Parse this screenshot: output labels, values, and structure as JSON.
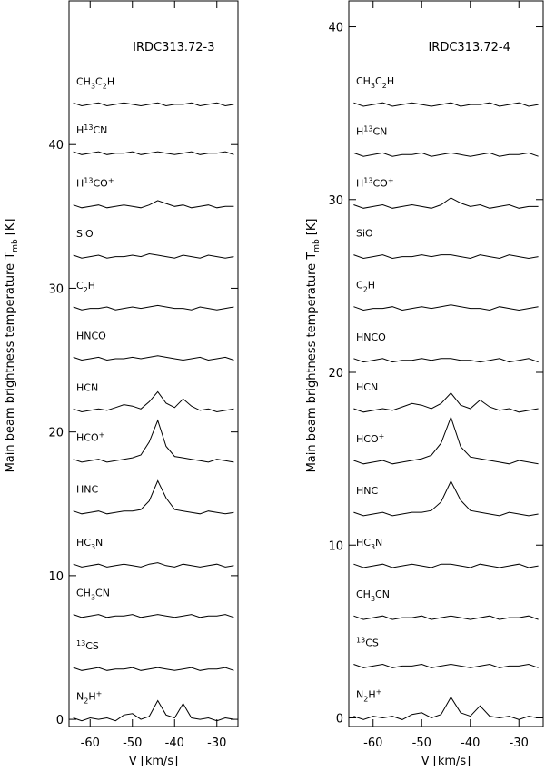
{
  "chart_data": [
    {
      "type": "line",
      "title": "IRDC313.72-3",
      "xlabel": "V [km/s]",
      "ylabel": [
        {
          "text": "Main beam brightness temperature T"
        },
        {
          "text": "mb",
          "script": "sub"
        },
        {
          "text": "[K]"
        }
      ],
      "x": [
        -64,
        -62,
        -60,
        -58,
        -56,
        -54,
        -52,
        -50,
        -48,
        -46,
        -44,
        -42,
        -40,
        -38,
        -36,
        -34,
        -32,
        -30,
        -28,
        -26
      ],
      "xlim": [
        -65,
        -25
      ],
      "xticks": [
        -60,
        -50,
        -40,
        -30
      ],
      "ylim": [
        -0.5,
        50
      ],
      "yticks": [
        0,
        10,
        20,
        30,
        40
      ],
      "series": [
        {
          "name": [
            {
              "text": "CH"
            },
            {
              "text": "3",
              "script": "sub"
            },
            {
              "text": "C"
            },
            {
              "text": "2",
              "script": "sub"
            },
            {
              "text": "H"
            }
          ],
          "color": "#000000",
          "values": [
            42.9,
            42.7,
            42.8,
            42.9,
            42.7,
            42.8,
            42.9,
            42.8,
            42.7,
            42.8,
            42.9,
            42.7,
            42.8,
            42.8,
            42.9,
            42.7,
            42.8,
            42.9,
            42.7,
            42.8
          ]
        },
        {
          "name": [
            {
              "text": "H"
            },
            {
              "text": "13",
              "script": "super"
            },
            {
              "text": "CN"
            }
          ],
          "color": "#000000",
          "values": [
            39.5,
            39.3,
            39.4,
            39.5,
            39.3,
            39.4,
            39.4,
            39.5,
            39.3,
            39.4,
            39.5,
            39.4,
            39.3,
            39.4,
            39.5,
            39.3,
            39.4,
            39.4,
            39.5,
            39.3
          ]
        },
        {
          "name": [
            {
              "text": "H"
            },
            {
              "text": "13",
              "script": "super"
            },
            {
              "text": "CO"
            },
            {
              "text": "+",
              "script": "super"
            }
          ],
          "color": "#000000",
          "values": [
            35.8,
            35.6,
            35.7,
            35.8,
            35.6,
            35.7,
            35.8,
            35.7,
            35.6,
            35.8,
            36.1,
            35.9,
            35.7,
            35.8,
            35.6,
            35.7,
            35.8,
            35.6,
            35.7,
            35.7
          ]
        },
        {
          "name": [
            {
              "text": "SiO"
            }
          ],
          "color": "#000000",
          "values": [
            32.3,
            32.1,
            32.2,
            32.3,
            32.1,
            32.2,
            32.2,
            32.3,
            32.2,
            32.4,
            32.3,
            32.2,
            32.1,
            32.3,
            32.2,
            32.1,
            32.3,
            32.2,
            32.1,
            32.2
          ]
        },
        {
          "name": [
            {
              "text": "C"
            },
            {
              "text": "2",
              "script": "sub"
            },
            {
              "text": "H"
            }
          ],
          "color": "#000000",
          "values": [
            28.7,
            28.5,
            28.6,
            28.6,
            28.7,
            28.5,
            28.6,
            28.7,
            28.6,
            28.7,
            28.8,
            28.7,
            28.6,
            28.6,
            28.5,
            28.7,
            28.6,
            28.5,
            28.6,
            28.7
          ]
        },
        {
          "name": [
            {
              "text": "HNCO"
            }
          ],
          "color": "#000000",
          "values": [
            25.2,
            25.0,
            25.1,
            25.2,
            25.0,
            25.1,
            25.1,
            25.2,
            25.1,
            25.2,
            25.3,
            25.2,
            25.1,
            25.0,
            25.1,
            25.2,
            25.0,
            25.1,
            25.2,
            25.0
          ]
        },
        {
          "name": [
            {
              "text": "HCN"
            }
          ],
          "color": "#000000",
          "values": [
            21.6,
            21.4,
            21.5,
            21.6,
            21.5,
            21.7,
            21.9,
            21.8,
            21.6,
            22.1,
            22.8,
            22.0,
            21.7,
            22.3,
            21.8,
            21.5,
            21.6,
            21.4,
            21.5,
            21.6
          ]
        },
        {
          "name": [
            {
              "text": "HCO"
            },
            {
              "text": "+",
              "script": "super"
            }
          ],
          "color": "#000000",
          "values": [
            18.1,
            17.9,
            18.0,
            18.1,
            17.9,
            18.0,
            18.1,
            18.2,
            18.4,
            19.3,
            20.8,
            19.0,
            18.3,
            18.2,
            18.1,
            18.0,
            17.9,
            18.1,
            18.0,
            17.9
          ]
        },
        {
          "name": [
            {
              "text": "HNC"
            }
          ],
          "color": "#000000",
          "values": [
            14.5,
            14.3,
            14.4,
            14.5,
            14.3,
            14.4,
            14.5,
            14.5,
            14.6,
            15.2,
            16.6,
            15.4,
            14.6,
            14.5,
            14.4,
            14.3,
            14.5,
            14.4,
            14.3,
            14.4
          ]
        },
        {
          "name": [
            {
              "text": "HC"
            },
            {
              "text": "3",
              "script": "sub"
            },
            {
              "text": "N"
            }
          ],
          "color": "#000000",
          "values": [
            10.8,
            10.6,
            10.7,
            10.8,
            10.6,
            10.7,
            10.8,
            10.7,
            10.6,
            10.8,
            10.9,
            10.7,
            10.6,
            10.8,
            10.7,
            10.6,
            10.7,
            10.8,
            10.6,
            10.7
          ]
        },
        {
          "name": [
            {
              "text": "CH"
            },
            {
              "text": "3",
              "script": "sub"
            },
            {
              "text": "CN"
            }
          ],
          "color": "#000000",
          "values": [
            7.3,
            7.1,
            7.2,
            7.3,
            7.1,
            7.2,
            7.2,
            7.3,
            7.1,
            7.2,
            7.3,
            7.2,
            7.1,
            7.2,
            7.3,
            7.1,
            7.2,
            7.2,
            7.3,
            7.1
          ]
        },
        {
          "name": [
            {
              "text": "13",
              "script": "super"
            },
            {
              "text": "CS"
            }
          ],
          "color": "#000000",
          "values": [
            3.6,
            3.4,
            3.5,
            3.6,
            3.4,
            3.5,
            3.5,
            3.6,
            3.4,
            3.5,
            3.6,
            3.5,
            3.4,
            3.5,
            3.6,
            3.4,
            3.5,
            3.5,
            3.6,
            3.4
          ]
        },
        {
          "name": [
            {
              "text": "N"
            },
            {
              "text": "2",
              "script": "sub"
            },
            {
              "text": "H"
            },
            {
              "text": "+",
              "script": "super"
            }
          ],
          "color": "#000000",
          "values": [
            0.1,
            -0.1,
            0.1,
            0,
            0.1,
            -0.1,
            0.3,
            0.4,
            0,
            0.2,
            1.3,
            0.3,
            0.1,
            1.1,
            0.1,
            0,
            0.1,
            -0.1,
            0.1,
            0
          ]
        }
      ]
    },
    {
      "type": "line",
      "title": "IRDC313.72-4",
      "xlabel": "V [km/s]",
      "ylabel": [
        {
          "text": "Main beam brightness temperature T"
        },
        {
          "text": "mb",
          "script": "sub"
        },
        {
          "text": "[K]"
        }
      ],
      "x": [
        -64,
        -62,
        -60,
        -58,
        -56,
        -54,
        -52,
        -50,
        -48,
        -46,
        -44,
        -42,
        -40,
        -38,
        -36,
        -34,
        -32,
        -30,
        -28,
        -26
      ],
      "xlim": [
        -65,
        -25
      ],
      "xticks": [
        -60,
        -50,
        -40,
        -30
      ],
      "ylim": [
        -0.5,
        41.5
      ],
      "yticks": [
        0,
        10,
        20,
        30,
        40
      ],
      "series": [
        {
          "name": [
            {
              "text": "CH"
            },
            {
              "text": "3",
              "script": "sub"
            },
            {
              "text": "C"
            },
            {
              "text": "2",
              "script": "sub"
            },
            {
              "text": "H"
            }
          ],
          "color": "#000000",
          "values": [
            35.6,
            35.4,
            35.5,
            35.6,
            35.4,
            35.5,
            35.6,
            35.5,
            35.4,
            35.5,
            35.6,
            35.4,
            35.5,
            35.5,
            35.6,
            35.4,
            35.5,
            35.6,
            35.4,
            35.5
          ]
        },
        {
          "name": [
            {
              "text": "H"
            },
            {
              "text": "13",
              "script": "super"
            },
            {
              "text": "CN"
            }
          ],
          "color": "#000000",
          "values": [
            32.7,
            32.5,
            32.6,
            32.7,
            32.5,
            32.6,
            32.6,
            32.7,
            32.5,
            32.6,
            32.7,
            32.6,
            32.5,
            32.6,
            32.7,
            32.5,
            32.6,
            32.6,
            32.7,
            32.5
          ]
        },
        {
          "name": [
            {
              "text": "H"
            },
            {
              "text": "13",
              "script": "super"
            },
            {
              "text": "CO"
            },
            {
              "text": "+",
              "script": "super"
            }
          ],
          "color": "#000000",
          "values": [
            29.7,
            29.5,
            29.6,
            29.7,
            29.5,
            29.6,
            29.7,
            29.6,
            29.5,
            29.7,
            30.1,
            29.8,
            29.6,
            29.7,
            29.5,
            29.6,
            29.7,
            29.5,
            29.6,
            29.6
          ]
        },
        {
          "name": [
            {
              "text": "SiO"
            }
          ],
          "color": "#000000",
          "values": [
            26.8,
            26.6,
            26.7,
            26.8,
            26.6,
            26.7,
            26.7,
            26.8,
            26.7,
            26.8,
            26.8,
            26.7,
            26.6,
            26.8,
            26.7,
            26.6,
            26.8,
            26.7,
            26.6,
            26.7
          ]
        },
        {
          "name": [
            {
              "text": "C"
            },
            {
              "text": "2",
              "script": "sub"
            },
            {
              "text": "H"
            }
          ],
          "color": "#000000",
          "values": [
            23.8,
            23.6,
            23.7,
            23.7,
            23.8,
            23.6,
            23.7,
            23.8,
            23.7,
            23.8,
            23.9,
            23.8,
            23.7,
            23.7,
            23.6,
            23.8,
            23.7,
            23.6,
            23.7,
            23.8
          ]
        },
        {
          "name": [
            {
              "text": "HNCO"
            }
          ],
          "color": "#000000",
          "values": [
            20.8,
            20.6,
            20.7,
            20.8,
            20.6,
            20.7,
            20.7,
            20.8,
            20.7,
            20.8,
            20.8,
            20.7,
            20.7,
            20.6,
            20.7,
            20.8,
            20.6,
            20.7,
            20.8,
            20.6
          ]
        },
        {
          "name": [
            {
              "text": "HCN"
            }
          ],
          "color": "#000000",
          "values": [
            17.9,
            17.7,
            17.8,
            17.9,
            17.8,
            18.0,
            18.2,
            18.1,
            17.9,
            18.2,
            18.8,
            18.1,
            17.9,
            18.4,
            18.0,
            17.8,
            17.9,
            17.7,
            17.8,
            17.9
          ]
        },
        {
          "name": [
            {
              "text": "HCO"
            },
            {
              "text": "+",
              "script": "super"
            }
          ],
          "color": "#000000",
          "values": [
            14.9,
            14.7,
            14.8,
            14.9,
            14.7,
            14.8,
            14.9,
            15.0,
            15.2,
            15.9,
            17.4,
            15.7,
            15.1,
            15.0,
            14.9,
            14.8,
            14.7,
            14.9,
            14.8,
            14.7
          ]
        },
        {
          "name": [
            {
              "text": "HNC"
            }
          ],
          "color": "#000000",
          "values": [
            11.9,
            11.7,
            11.8,
            11.9,
            11.7,
            11.8,
            11.9,
            11.9,
            12.0,
            12.5,
            13.7,
            12.6,
            12.0,
            11.9,
            11.8,
            11.7,
            11.9,
            11.8,
            11.7,
            11.8
          ]
        },
        {
          "name": [
            {
              "text": "HC"
            },
            {
              "text": "3",
              "script": "sub"
            },
            {
              "text": "N"
            }
          ],
          "color": "#000000",
          "values": [
            8.9,
            8.7,
            8.8,
            8.9,
            8.7,
            8.8,
            8.9,
            8.8,
            8.7,
            8.9,
            8.9,
            8.8,
            8.7,
            8.9,
            8.8,
            8.7,
            8.8,
            8.9,
            8.7,
            8.8
          ]
        },
        {
          "name": [
            {
              "text": "CH"
            },
            {
              "text": "3",
              "script": "sub"
            },
            {
              "text": "CN"
            }
          ],
          "color": "#000000",
          "values": [
            5.9,
            5.7,
            5.8,
            5.9,
            5.7,
            5.8,
            5.8,
            5.9,
            5.7,
            5.8,
            5.9,
            5.8,
            5.7,
            5.8,
            5.9,
            5.7,
            5.8,
            5.8,
            5.9,
            5.7
          ]
        },
        {
          "name": [
            {
              "text": "13",
              "script": "super"
            },
            {
              "text": "CS"
            }
          ],
          "color": "#000000",
          "values": [
            3.1,
            2.9,
            3.0,
            3.1,
            2.9,
            3.0,
            3.0,
            3.1,
            2.9,
            3.0,
            3.1,
            3.0,
            2.9,
            3.0,
            3.1,
            2.9,
            3.0,
            3.0,
            3.1,
            2.9
          ]
        },
        {
          "name": [
            {
              "text": "N"
            },
            {
              "text": "2",
              "script": "sub"
            },
            {
              "text": "H"
            },
            {
              "text": "+",
              "script": "super"
            }
          ],
          "color": "#000000",
          "values": [
            0.1,
            -0.1,
            0.1,
            0,
            0.1,
            -0.1,
            0.2,
            0.3,
            0,
            0.2,
            1.2,
            0.3,
            0.1,
            0.7,
            0.1,
            0,
            0.1,
            -0.1,
            0.1,
            0
          ]
        }
      ]
    }
  ]
}
